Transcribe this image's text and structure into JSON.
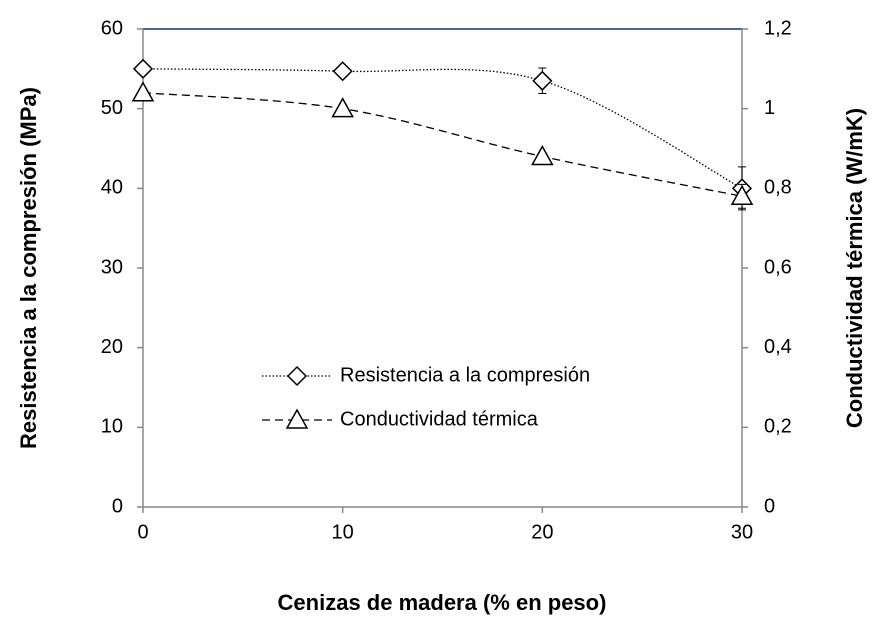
{
  "chart_data": {
    "type": "line",
    "x_label": "Cenizas de madera (% en peso)",
    "y_label": "Resistencia a la compresión (MPa)",
    "y2_label": "Conductividad térmica (W/mK)",
    "x": [
      0,
      10,
      20,
      30
    ],
    "xlim": [
      0,
      30
    ],
    "xticks": [
      0,
      10,
      20,
      30
    ],
    "ylim": [
      0,
      60
    ],
    "yticks": [
      0,
      10,
      20,
      30,
      40,
      50,
      60
    ],
    "y2lim": [
      0,
      1.2
    ],
    "y2ticks": [
      0,
      {
        "value": 0.2,
        "label": "0,2"
      },
      {
        "value": 0.4,
        "label": "0,4"
      },
      {
        "value": 0.6,
        "label": "0,6"
      },
      {
        "value": 0.8,
        "label": "0,8"
      },
      1,
      {
        "value": 1.2,
        "label": "1,2"
      }
    ],
    "grid": false,
    "legend": "center",
    "series": [
      {
        "name": "Resistencia a la compresión",
        "color": "#000000",
        "line_style": "dotted",
        "marker": "diamond",
        "values": [
          55,
          54.7,
          53.5,
          40
        ],
        "errors": [
          0.5,
          0.5,
          1.6,
          2.7
        ]
      },
      {
        "name": "Conductividad térmica",
        "color": "#000000",
        "line_style": "dashed",
        "marker": "triangle",
        "axis": "y2",
        "values": [
          1.04,
          1.0,
          0.88,
          0.78
        ],
        "errors": [
          0.01,
          0.01,
          0.01,
          0.03
        ]
      }
    ]
  }
}
